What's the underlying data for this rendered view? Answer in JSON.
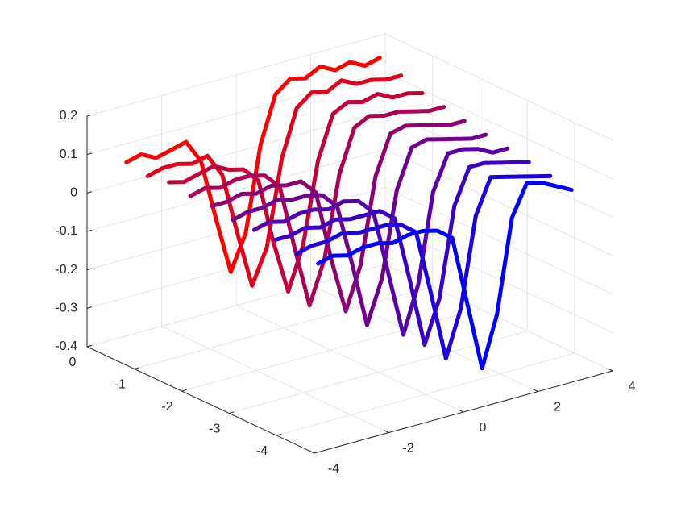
{
  "chart_data": {
    "type": "line3d",
    "xlim": [
      -4,
      4
    ],
    "ylim": [
      -4.8,
      0
    ],
    "zlim": [
      -0.4,
      0.2
    ],
    "xticks": [
      -4,
      -2,
      0,
      2,
      4
    ],
    "yticks": [
      -4,
      -3,
      -2,
      -1,
      0
    ],
    "zticks": [
      -0.4,
      -0.3,
      -0.2,
      -0.1,
      0,
      0.1,
      0.2
    ],
    "grid": true,
    "x": [
      -3.2,
      -2.8,
      -2.4,
      -2,
      -1.6,
      -1.2,
      -0.8,
      -0.4,
      0,
      0.4,
      0.8,
      1.2,
      1.6,
      2,
      2.4,
      2.8,
      3.2,
      3.6
    ],
    "series": [
      {
        "color": "#ff0000",
        "y": -0.2,
        "values": [
          0.07,
          0.08,
          0.06,
          0.07,
          0.08,
          0.02,
          -0.14,
          -0.29,
          -0.2,
          0.02,
          0.14,
          0.17,
          0.16,
          0.18,
          0.16,
          0.17,
          0.15,
          0.16
        ]
      },
      {
        "color": "#e3001c",
        "y": -0.65,
        "values": [
          0.06,
          0.07,
          0.07,
          0.06,
          0.07,
          0.01,
          -0.15,
          -0.3,
          -0.21,
          0.01,
          0.13,
          0.16,
          0.15,
          0.17,
          0.15,
          0.15,
          0.14,
          0.14
        ]
      },
      {
        "color": "#c60039",
        "y": -1.1,
        "values": [
          0.07,
          0.06,
          0.07,
          0.08,
          0.06,
          0.05,
          0.01,
          -0.16,
          -0.3,
          -0.19,
          0.02,
          0.13,
          0.15,
          0.14,
          0.15,
          0.13,
          0.13,
          0.12
        ]
      },
      {
        "color": "#aa0055",
        "y": -1.55,
        "values": [
          0.06,
          0.07,
          0.06,
          0.07,
          0.07,
          0.06,
          0.02,
          -0.15,
          -0.31,
          -0.2,
          0.01,
          0.12,
          0.14,
          0.13,
          0.13,
          0.12,
          0.11,
          0.11
        ]
      },
      {
        "color": "#8e0071",
        "y": -2.0,
        "values": [
          0.06,
          0.06,
          0.07,
          0.06,
          0.07,
          0.06,
          0.06,
          0.02,
          -0.16,
          -0.31,
          -0.2,
          0.02,
          0.12,
          0.13,
          0.12,
          0.11,
          0.1,
          0.1
        ]
      },
      {
        "color": "#71008e",
        "y": -2.45,
        "values": [
          0.05,
          0.06,
          0.06,
          0.07,
          0.06,
          0.06,
          0.05,
          0.01,
          -0.15,
          -0.32,
          -0.21,
          0.01,
          0.11,
          0.12,
          0.11,
          0.1,
          0.09,
          0.09
        ]
      },
      {
        "color": "#5500aa",
        "y": -2.9,
        "values": [
          0.05,
          0.06,
          0.05,
          0.06,
          0.06,
          0.05,
          0.06,
          0.05,
          0.01,
          -0.16,
          -0.33,
          -0.21,
          0.02,
          0.11,
          0.11,
          0.1,
          0.08,
          0.08
        ]
      },
      {
        "color": "#3900c6",
        "y": -3.35,
        "values": [
          0.05,
          0.05,
          0.06,
          0.05,
          0.06,
          0.05,
          0.05,
          0.05,
          0.02,
          -0.15,
          -0.33,
          -0.22,
          0.01,
          0.1,
          0.1,
          0.09,
          0.08,
          0.07
        ]
      },
      {
        "color": "#1c00e3",
        "y": -3.8,
        "values": [
          0.04,
          0.05,
          0.05,
          0.06,
          0.05,
          0.05,
          0.05,
          0.04,
          0.01,
          -0.16,
          -0.34,
          -0.22,
          0.01,
          0.1,
          0.09,
          0.08,
          0.07,
          0.06
        ]
      },
      {
        "color": "#0000ff",
        "y": -4.25,
        "values": [
          0.04,
          0.05,
          0.04,
          0.05,
          0.05,
          0.04,
          0.05,
          0.05,
          0.04,
          0.01,
          -0.17,
          -0.35,
          -0.22,
          0.02,
          0.1,
          0.09,
          0.07,
          0.05
        ]
      }
    ]
  }
}
